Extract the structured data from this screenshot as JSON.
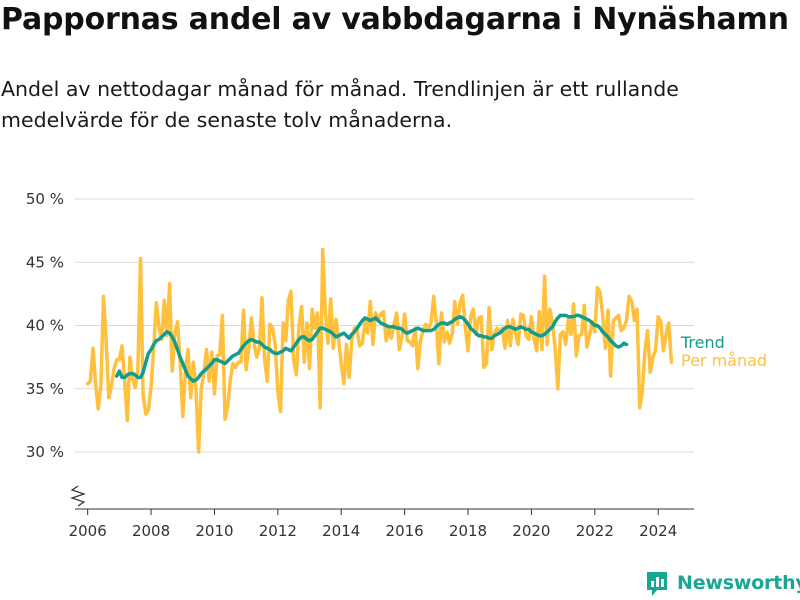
{
  "page": {
    "title": "Pappornas andel av vabbdagarna i Nynäshamn",
    "subtitle": "Andel av nettodagar månad för månad. Trendlinjen är ett rullande medelvärde för de senaste tolv månaderna.",
    "brand": "Newsworthy"
  },
  "colors": {
    "monthly": "#FFC13D",
    "trend": "#139C8C",
    "grid": "#D9D9D9",
    "axis": "#333333",
    "brand": "#1AA692"
  },
  "chart_data": {
    "type": "line",
    "title": "Pappornas andel av vabbdagarna i Nynäshamn",
    "ylim": [
      25.5,
      50
    ],
    "yticks": [
      30,
      35,
      40,
      45,
      50
    ],
    "ytick_labels": [
      "30 %",
      "35 %",
      "40 %",
      "45 %",
      "50 %"
    ],
    "y_axis_break": true,
    "xlim": [
      2005.6,
      2025.13
    ],
    "xticks": [
      2006,
      2008,
      2010,
      2012,
      2014,
      2016,
      2018,
      2020,
      2022,
      2024
    ],
    "xtick_labels": [
      "2006",
      "2008",
      "2010",
      "2012",
      "2014",
      "2016",
      "2018",
      "2020",
      "2022",
      "2024"
    ],
    "grid": "horizontal",
    "legend_position": "right, at line ends",
    "series": [
      {
        "name": "Per månad",
        "x_start": 2006.0,
        "x_step": 0.08333,
        "values": [
          35.4,
          35.6,
          38.2,
          35.4,
          33.4,
          35.3,
          42.3,
          38.7,
          34.3,
          35.2,
          36.6,
          37.3,
          37.3,
          38.4,
          35.6,
          32.5,
          37.5,
          35.8,
          35.1,
          36.6,
          45.3,
          34.5,
          33.0,
          33.3,
          35.2,
          38.2,
          41.8,
          39.8,
          38.9,
          42.0,
          39.2,
          43.3,
          36.4,
          39.4,
          40.3,
          37.2,
          32.8,
          36.4,
          38.1,
          34.3,
          37.1,
          34.9,
          30.0,
          35.0,
          36.2,
          38.1,
          35.6,
          37.9,
          34.6,
          37.6,
          37.7,
          40.8,
          32.6,
          33.6,
          35.7,
          37.0,
          36.7,
          37.1,
          37.1,
          41.2,
          36.5,
          38.2,
          40.6,
          38.6,
          37.5,
          38.2,
          42.2,
          37.3,
          35.6,
          40.1,
          39.8,
          38.5,
          34.8,
          33.2,
          40.2,
          38.8,
          42.0,
          42.7,
          37.2,
          36.1,
          40.0,
          41.5,
          37.1,
          40.2,
          36.6,
          41.3,
          39.8,
          41.0,
          33.5,
          46.0,
          41.0,
          38.6,
          42.1,
          38.2,
          40.5,
          38.9,
          37.0,
          35.4,
          38.5,
          35.9,
          38.8,
          39.8,
          39.6,
          38.4,
          38.6,
          40.3,
          39.4,
          41.9,
          38.5,
          41.0,
          40.5,
          40.9,
          41.1,
          38.8,
          39.8,
          39.0,
          40.1,
          41.0,
          38.1,
          39.1,
          40.9,
          38.8,
          38.7,
          38.4,
          39.8,
          36.6,
          38.8,
          39.6,
          40.1,
          39.8,
          40.2,
          42.3,
          40.2,
          37.0,
          41.0,
          38.7,
          39.5,
          38.6,
          39.3,
          41.9,
          40.1,
          41.8,
          42.4,
          39.8,
          38.0,
          40.7,
          41.3,
          39.3,
          40.6,
          40.7,
          36.7,
          37.0,
          41.4,
          38.1,
          39.4,
          39.8,
          39.4,
          39.8,
          38.2,
          40.4,
          38.4,
          40.5,
          39.4,
          38.5,
          40.9,
          40.8,
          39.2,
          38.9,
          40.7,
          39.0,
          38.0,
          41.1,
          38.1,
          43.9,
          38.5,
          41.3,
          40.2,
          38.2,
          35.0,
          39.3,
          39.5,
          38.5,
          40.5,
          39.3,
          41.7,
          37.6,
          39.2,
          39.3,
          41.6,
          38.3,
          39.2,
          40.3,
          39.5,
          43.0,
          42.6,
          40.8,
          38.2,
          41.2,
          36.0,
          40.4,
          40.6,
          40.8,
          39.6,
          39.8,
          40.4,
          42.3,
          41.9,
          40.4,
          41.3,
          33.5,
          34.8,
          38.1,
          39.6,
          36.3,
          37.5,
          38.0,
          40.7,
          40.3,
          38.0,
          39.3,
          40.2,
          37.1
        ]
      },
      {
        "name": "Trend",
        "x_start": 2006.9167,
        "x_step": 0.08333,
        "values": [
          36.0,
          36.4,
          35.9,
          35.9,
          36.1,
          36.2,
          36.2,
          36.1,
          35.9,
          35.9,
          36.3,
          37.1,
          37.8,
          38.1,
          38.5,
          38.8,
          38.9,
          39.1,
          39.3,
          39.5,
          39.4,
          39.1,
          38.7,
          38.1,
          37.5,
          37.0,
          36.5,
          36.0,
          35.8,
          35.6,
          35.7,
          35.9,
          36.2,
          36.4,
          36.6,
          36.8,
          37.0,
          37.3,
          37.3,
          37.2,
          37.1,
          37.0,
          37.2,
          37.4,
          37.6,
          37.7,
          37.8,
          38.1,
          38.4,
          38.6,
          38.8,
          38.9,
          38.8,
          38.7,
          38.7,
          38.5,
          38.3,
          38.2,
          38.1,
          37.9,
          37.8,
          37.8,
          37.9,
          38.0,
          38.2,
          38.1,
          38.0,
          38.3,
          38.6,
          38.9,
          39.1,
          39.1,
          38.9,
          38.8,
          38.9,
          39.2,
          39.5,
          39.8,
          39.8,
          39.7,
          39.6,
          39.5,
          39.3,
          39.1,
          39.2,
          39.3,
          39.4,
          39.2,
          39.0,
          39.3,
          39.5,
          39.8,
          40.1,
          40.4,
          40.6,
          40.5,
          40.4,
          40.5,
          40.6,
          40.4,
          40.2,
          40.1,
          40.0,
          39.9,
          39.9,
          39.9,
          39.8,
          39.8,
          39.7,
          39.5,
          39.4,
          39.5,
          39.6,
          39.7,
          39.8,
          39.7,
          39.6,
          39.6,
          39.6,
          39.6,
          39.7,
          39.9,
          40.1,
          40.2,
          40.2,
          40.1,
          40.2,
          40.3,
          40.5,
          40.6,
          40.7,
          40.6,
          40.4,
          40.1,
          39.8,
          39.6,
          39.4,
          39.2,
          39.2,
          39.1,
          39.1,
          39.0,
          39.0,
          39.2,
          39.3,
          39.4,
          39.6,
          39.8,
          39.9,
          39.9,
          39.8,
          39.7,
          39.8,
          39.9,
          39.8,
          39.7,
          39.7,
          39.5,
          39.4,
          39.3,
          39.2,
          39.2,
          39.3,
          39.5,
          39.7,
          39.9,
          40.3,
          40.6,
          40.8,
          40.8,
          40.8,
          40.7,
          40.7,
          40.7,
          40.8,
          40.8,
          40.7,
          40.6,
          40.5,
          40.4,
          40.2,
          40.0,
          40.0,
          39.8,
          39.5,
          39.3,
          39.1,
          38.8,
          38.6,
          38.4,
          38.3,
          38.4,
          38.6,
          38.5
        ]
      }
    ]
  }
}
